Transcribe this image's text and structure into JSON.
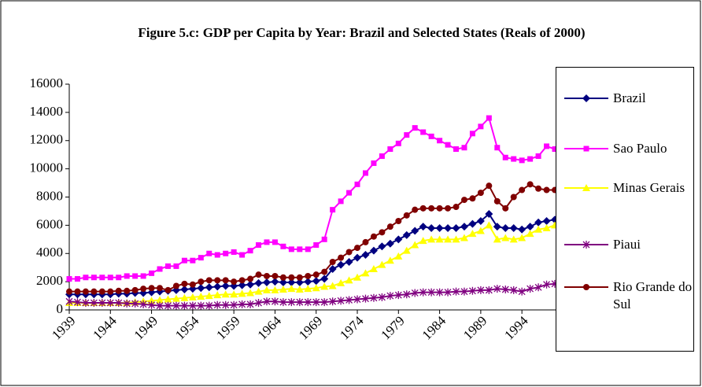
{
  "chart_data": {
    "type": "line",
    "title": "Figure 5.c: GDP per Capita by Year: Brazil and Selected States (Reals of 2000)",
    "x": [
      1939,
      1940,
      1941,
      1942,
      1943,
      1944,
      1945,
      1946,
      1947,
      1948,
      1949,
      1950,
      1951,
      1952,
      1953,
      1954,
      1955,
      1956,
      1957,
      1958,
      1959,
      1960,
      1961,
      1962,
      1963,
      1964,
      1965,
      1966,
      1967,
      1968,
      1969,
      1970,
      1971,
      1972,
      1973,
      1974,
      1975,
      1976,
      1977,
      1978,
      1979,
      1980,
      1981,
      1982,
      1983,
      1984,
      1985,
      1986,
      1987,
      1988,
      1989,
      1990,
      1991,
      1992,
      1993,
      1994,
      1995,
      1996,
      1997,
      1998
    ],
    "xlim": [
      1939,
      1998
    ],
    "xticks": [
      1939,
      1944,
      1949,
      1954,
      1959,
      1964,
      1969,
      1974,
      1979,
      1984,
      1989,
      1994
    ],
    "ylim": [
      0,
      16000
    ],
    "yticks": [
      0,
      2000,
      4000,
      6000,
      8000,
      10000,
      12000,
      14000,
      16000
    ],
    "series": [
      {
        "name": "Brazil",
        "color": "#000080",
        "marker": "diamond",
        "values": [
          1100,
          1100,
          1100,
          1100,
          1100,
          1100,
          1150,
          1150,
          1200,
          1200,
          1250,
          1300,
          1350,
          1400,
          1450,
          1500,
          1550,
          1600,
          1650,
          1700,
          1700,
          1750,
          1800,
          1900,
          1950,
          2000,
          1950,
          1950,
          1950,
          2000,
          2050,
          2200,
          2900,
          3200,
          3400,
          3700,
          3900,
          4200,
          4500,
          4700,
          5000,
          5300,
          5600,
          5900,
          5800,
          5800,
          5800,
          5800,
          5900,
          6100,
          6300,
          6800,
          5900,
          5800,
          5800,
          5700,
          5900,
          6200,
          6300,
          6400
        ]
      },
      {
        "name": "Sao Paulo",
        "color": "#ff00ff",
        "marker": "square",
        "values": [
          2200,
          2200,
          2300,
          2300,
          2300,
          2300,
          2300,
          2400,
          2400,
          2400,
          2600,
          2900,
          3100,
          3100,
          3500,
          3500,
          3700,
          4000,
          3900,
          4000,
          4100,
          3900,
          4200,
          4600,
          4800,
          4800,
          4500,
          4300,
          4300,
          4300,
          4600,
          5000,
          7100,
          7700,
          8300,
          8900,
          9700,
          10400,
          10900,
          11400,
          11800,
          12400,
          12900,
          12600,
          12300,
          12000,
          11700,
          11400,
          11500,
          12500,
          13000,
          13600,
          11500,
          10800,
          10700,
          10600,
          10700,
          10900,
          11600,
          11400
        ]
      },
      {
        "name": "Minas Gerais",
        "color": "#ffff00",
        "marker": "triangle",
        "values": [
          500,
          500,
          500,
          500,
          500,
          500,
          500,
          500,
          550,
          600,
          650,
          700,
          750,
          800,
          850,
          900,
          950,
          1000,
          1050,
          1100,
          1100,
          1150,
          1200,
          1300,
          1400,
          1400,
          1450,
          1500,
          1450,
          1500,
          1550,
          1650,
          1700,
          1900,
          2100,
          2300,
          2600,
          2900,
          3200,
          3500,
          3800,
          4200,
          4600,
          4900,
          5000,
          5000,
          5000,
          5000,
          5100,
          5400,
          5600,
          6000,
          5000,
          5100,
          5000,
          5100,
          5400,
          5700,
          5800,
          6000
        ]
      },
      {
        "name": "Piaui",
        "color": "#800080",
        "marker": "star",
        "values": [
          600,
          550,
          500,
          500,
          500,
          500,
          500,
          450,
          450,
          400,
          350,
          300,
          300,
          300,
          300,
          300,
          300,
          300,
          350,
          350,
          350,
          400,
          400,
          500,
          600,
          600,
          550,
          550,
          550,
          550,
          550,
          550,
          600,
          650,
          700,
          750,
          800,
          850,
          900,
          1000,
          1050,
          1100,
          1200,
          1250,
          1250,
          1250,
          1250,
          1300,
          1300,
          1350,
          1400,
          1400,
          1500,
          1450,
          1400,
          1300,
          1500,
          1600,
          1800,
          1850
        ]
      },
      {
        "name": "Rio Grande do Sul",
        "color": "#800000",
        "marker": "circle",
        "values": [
          1300,
          1300,
          1300,
          1300,
          1300,
          1300,
          1350,
          1350,
          1400,
          1500,
          1550,
          1550,
          1400,
          1700,
          1850,
          1800,
          2000,
          2100,
          2100,
          2100,
          2000,
          2100,
          2200,
          2500,
          2400,
          2400,
          2300,
          2300,
          2300,
          2400,
          2500,
          2700,
          3400,
          3700,
          4100,
          4400,
          4800,
          5200,
          5500,
          5900,
          6300,
          6700,
          7100,
          7200,
          7200,
          7200,
          7200,
          7300,
          7800,
          7900,
          8300,
          8800,
          7700,
          7200,
          8000,
          8500,
          8900,
          8600,
          8500,
          8500
        ]
      }
    ]
  }
}
